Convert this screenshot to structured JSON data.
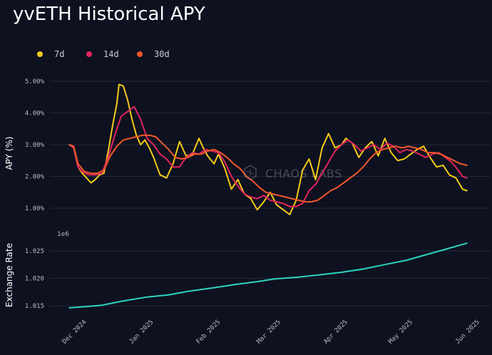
{
  "chart_data": [
    {
      "type": "line",
      "title": "yvETH Historical APY",
      "ylabel": "APY (%)",
      "ylim": [
        0.55,
        5.35
      ],
      "yticks": [
        "1.00%",
        "2.00%",
        "3.00%",
        "4.00%",
        "5.00%"
      ],
      "ytick_values": [
        1,
        2,
        3,
        4,
        5
      ],
      "grid": true,
      "legend_position": "top-left",
      "watermark": "CHAOS LABS",
      "series": [
        {
          "name": "7d",
          "color": "#f7ca18",
          "x": [
            "2024-11-25",
            "2024-11-27",
            "2024-11-29",
            "2024-12-01",
            "2024-12-03",
            "2024-12-05",
            "2024-12-07",
            "2024-12-09",
            "2024-12-11",
            "2024-12-13",
            "2024-12-15",
            "2024-12-17",
            "2024-12-18",
            "2024-12-20",
            "2024-12-22",
            "2024-12-24",
            "2024-12-26",
            "2024-12-28",
            "2024-12-30",
            "2025-01-01",
            "2025-01-03",
            "2025-01-06",
            "2025-01-09",
            "2025-01-12",
            "2025-01-15",
            "2025-01-18",
            "2025-01-21",
            "2025-01-24",
            "2025-01-26",
            "2025-01-28",
            "2025-01-31",
            "2025-02-02",
            "2025-02-05",
            "2025-02-08",
            "2025-02-11",
            "2025-02-14",
            "2025-02-17",
            "2025-02-20",
            "2025-02-23",
            "2025-02-26",
            "2025-03-01",
            "2025-03-04",
            "2025-03-07",
            "2025-03-10",
            "2025-03-13",
            "2025-03-16",
            "2025-03-19",
            "2025-03-22",
            "2025-03-25",
            "2025-03-28",
            "2025-03-31",
            "2025-04-02",
            "2025-04-05",
            "2025-04-08",
            "2025-04-11",
            "2025-04-14",
            "2025-04-17",
            "2025-04-20",
            "2025-04-23",
            "2025-04-26",
            "2025-04-29",
            "2025-05-02",
            "2025-05-05",
            "2025-05-08",
            "2025-05-11",
            "2025-05-14",
            "2025-05-17",
            "2025-05-20",
            "2025-05-23",
            "2025-05-26",
            "2025-05-28"
          ],
          "values": [
            3.0,
            2.9,
            2.3,
            2.1,
            1.95,
            1.8,
            1.9,
            2.05,
            2.1,
            2.8,
            3.6,
            4.3,
            4.9,
            4.85,
            4.4,
            3.8,
            3.3,
            3.0,
            3.15,
            2.9,
            2.6,
            2.05,
            1.95,
            2.4,
            3.1,
            2.65,
            2.7,
            3.2,
            2.9,
            2.65,
            2.4,
            2.7,
            2.25,
            1.6,
            1.9,
            1.45,
            1.3,
            0.95,
            1.2,
            1.5,
            1.1,
            0.95,
            0.8,
            1.25,
            2.2,
            2.55,
            1.9,
            2.9,
            3.35,
            2.9,
            3.0,
            3.2,
            3.05,
            2.6,
            2.9,
            3.1,
            2.65,
            3.2,
            2.75,
            2.5,
            2.55,
            2.7,
            2.85,
            2.95,
            2.6,
            2.3,
            2.35,
            2.05,
            1.95,
            1.6,
            1.55
          ]
        },
        {
          "name": "14d",
          "color": "#e3255f",
          "x": [
            "2024-11-25",
            "2024-11-27",
            "2024-11-29",
            "2024-12-01",
            "2024-12-04",
            "2024-12-07",
            "2024-12-10",
            "2024-12-13",
            "2024-12-16",
            "2024-12-19",
            "2024-12-22",
            "2024-12-25",
            "2024-12-28",
            "2024-12-31",
            "2025-01-03",
            "2025-01-06",
            "2025-01-09",
            "2025-01-12",
            "2025-01-15",
            "2025-01-18",
            "2025-01-21",
            "2025-01-24",
            "2025-01-27",
            "2025-01-30",
            "2025-02-02",
            "2025-02-05",
            "2025-02-08",
            "2025-02-11",
            "2025-02-14",
            "2025-02-17",
            "2025-02-20",
            "2025-02-23",
            "2025-02-26",
            "2025-03-01",
            "2025-03-04",
            "2025-03-07",
            "2025-03-10",
            "2025-03-13",
            "2025-03-16",
            "2025-03-19",
            "2025-03-22",
            "2025-03-25",
            "2025-03-28",
            "2025-03-31",
            "2025-04-03",
            "2025-04-06",
            "2025-04-09",
            "2025-04-12",
            "2025-04-15",
            "2025-04-18",
            "2025-04-21",
            "2025-04-24",
            "2025-04-27",
            "2025-04-30",
            "2025-05-03",
            "2025-05-06",
            "2025-05-09",
            "2025-05-12",
            "2025-05-15",
            "2025-05-18",
            "2025-05-21",
            "2025-05-24",
            "2025-05-26",
            "2025-05-28"
          ],
          "values": [
            3.0,
            2.9,
            2.3,
            2.15,
            2.05,
            2.05,
            2.1,
            2.6,
            3.3,
            3.9,
            4.05,
            4.2,
            3.8,
            3.2,
            3.0,
            2.7,
            2.55,
            2.3,
            2.3,
            2.6,
            2.75,
            2.7,
            2.85,
            2.8,
            2.75,
            2.45,
            2.0,
            1.7,
            1.45,
            1.35,
            1.3,
            1.4,
            1.25,
            1.2,
            1.15,
            1.05,
            1.05,
            1.15,
            1.55,
            1.75,
            2.1,
            2.45,
            2.8,
            3.0,
            3.15,
            3.0,
            2.8,
            2.9,
            3.0,
            2.85,
            3.05,
            2.95,
            2.75,
            2.85,
            2.8,
            2.7,
            2.6,
            2.7,
            2.75,
            2.6,
            2.45,
            2.2,
            2.0,
            1.95
          ]
        },
        {
          "name": "30d",
          "color": "#f4582b",
          "x": [
            "2024-11-25",
            "2024-11-27",
            "2024-11-29",
            "2024-12-02",
            "2024-12-05",
            "2024-12-08",
            "2024-12-11",
            "2024-12-14",
            "2024-12-17",
            "2024-12-20",
            "2024-12-23",
            "2024-12-26",
            "2024-12-29",
            "2025-01-01",
            "2025-01-04",
            "2025-01-07",
            "2025-01-10",
            "2025-01-13",
            "2025-01-16",
            "2025-01-19",
            "2025-01-22",
            "2025-01-25",
            "2025-01-28",
            "2025-01-31",
            "2025-02-03",
            "2025-02-06",
            "2025-02-09",
            "2025-02-12",
            "2025-02-15",
            "2025-02-18",
            "2025-02-21",
            "2025-02-24",
            "2025-02-27",
            "2025-03-02",
            "2025-03-05",
            "2025-03-08",
            "2025-03-11",
            "2025-03-14",
            "2025-03-17",
            "2025-03-20",
            "2025-03-23",
            "2025-03-26",
            "2025-03-29",
            "2025-04-01",
            "2025-04-04",
            "2025-04-07",
            "2025-04-10",
            "2025-04-13",
            "2025-04-16",
            "2025-04-19",
            "2025-04-22",
            "2025-04-25",
            "2025-04-28",
            "2025-05-01",
            "2025-05-04",
            "2025-05-07",
            "2025-05-10",
            "2025-05-13",
            "2025-05-16",
            "2025-05-19",
            "2025-05-22",
            "2025-05-25",
            "2025-05-28"
          ],
          "values": [
            3.0,
            2.95,
            2.4,
            2.15,
            2.1,
            2.1,
            2.2,
            2.65,
            2.95,
            3.15,
            3.2,
            3.25,
            3.3,
            3.3,
            3.25,
            3.05,
            2.85,
            2.6,
            2.55,
            2.6,
            2.7,
            2.7,
            2.8,
            2.85,
            2.75,
            2.6,
            2.4,
            2.25,
            2.0,
            1.85,
            1.65,
            1.5,
            1.45,
            1.4,
            1.35,
            1.3,
            1.25,
            1.2,
            1.2,
            1.25,
            1.4,
            1.55,
            1.65,
            1.8,
            1.95,
            2.1,
            2.3,
            2.55,
            2.75,
            2.85,
            2.9,
            2.95,
            2.9,
            2.95,
            2.9,
            2.85,
            2.75,
            2.75,
            2.7,
            2.6,
            2.5,
            2.4,
            2.35
          ]
        }
      ]
    },
    {
      "type": "line",
      "ylabel": "Exchange Rate",
      "exponent_label": "1e6",
      "ylim": [
        1.0137,
        1.0277
      ],
      "yticks": [
        "1.015",
        "1.020",
        "1.025"
      ],
      "ytick_values": [
        1.015,
        1.02,
        1.025
      ],
      "grid": true,
      "xticks": [
        "Dec 2024",
        "Jan 2025",
        "Feb 2025",
        "Mar 2025",
        "Apr 2025",
        "May 2025",
        "Jun 2025"
      ],
      "xtick_values": [
        "2024-12-01",
        "2025-01-01",
        "2025-02-01",
        "2025-03-01",
        "2025-04-01",
        "2025-05-01",
        "2025-06-01"
      ],
      "xlim": [
        "2024-11-16",
        "2025-06-08"
      ],
      "series": [
        {
          "color": "#2dd4bf",
          "x": [
            "2024-11-25",
            "2024-12-01",
            "2024-12-10",
            "2024-12-20",
            "2024-12-31",
            "2025-01-10",
            "2025-01-20",
            "2025-01-31",
            "2025-02-10",
            "2025-02-20",
            "2025-02-28",
            "2025-03-10",
            "2025-03-20",
            "2025-03-31",
            "2025-04-10",
            "2025-04-20",
            "2025-04-30",
            "2025-05-10",
            "2025-05-20",
            "2025-05-28"
          ],
          "values": [
            1.01465,
            1.0148,
            1.0151,
            1.0159,
            1.0166,
            1.017,
            1.0177,
            1.0183,
            1.0189,
            1.0194,
            1.0199,
            1.0202,
            1.0206,
            1.0211,
            1.0217,
            1.0225,
            1.0233,
            1.0244,
            1.0255,
            1.0264
          ]
        }
      ]
    }
  ]
}
